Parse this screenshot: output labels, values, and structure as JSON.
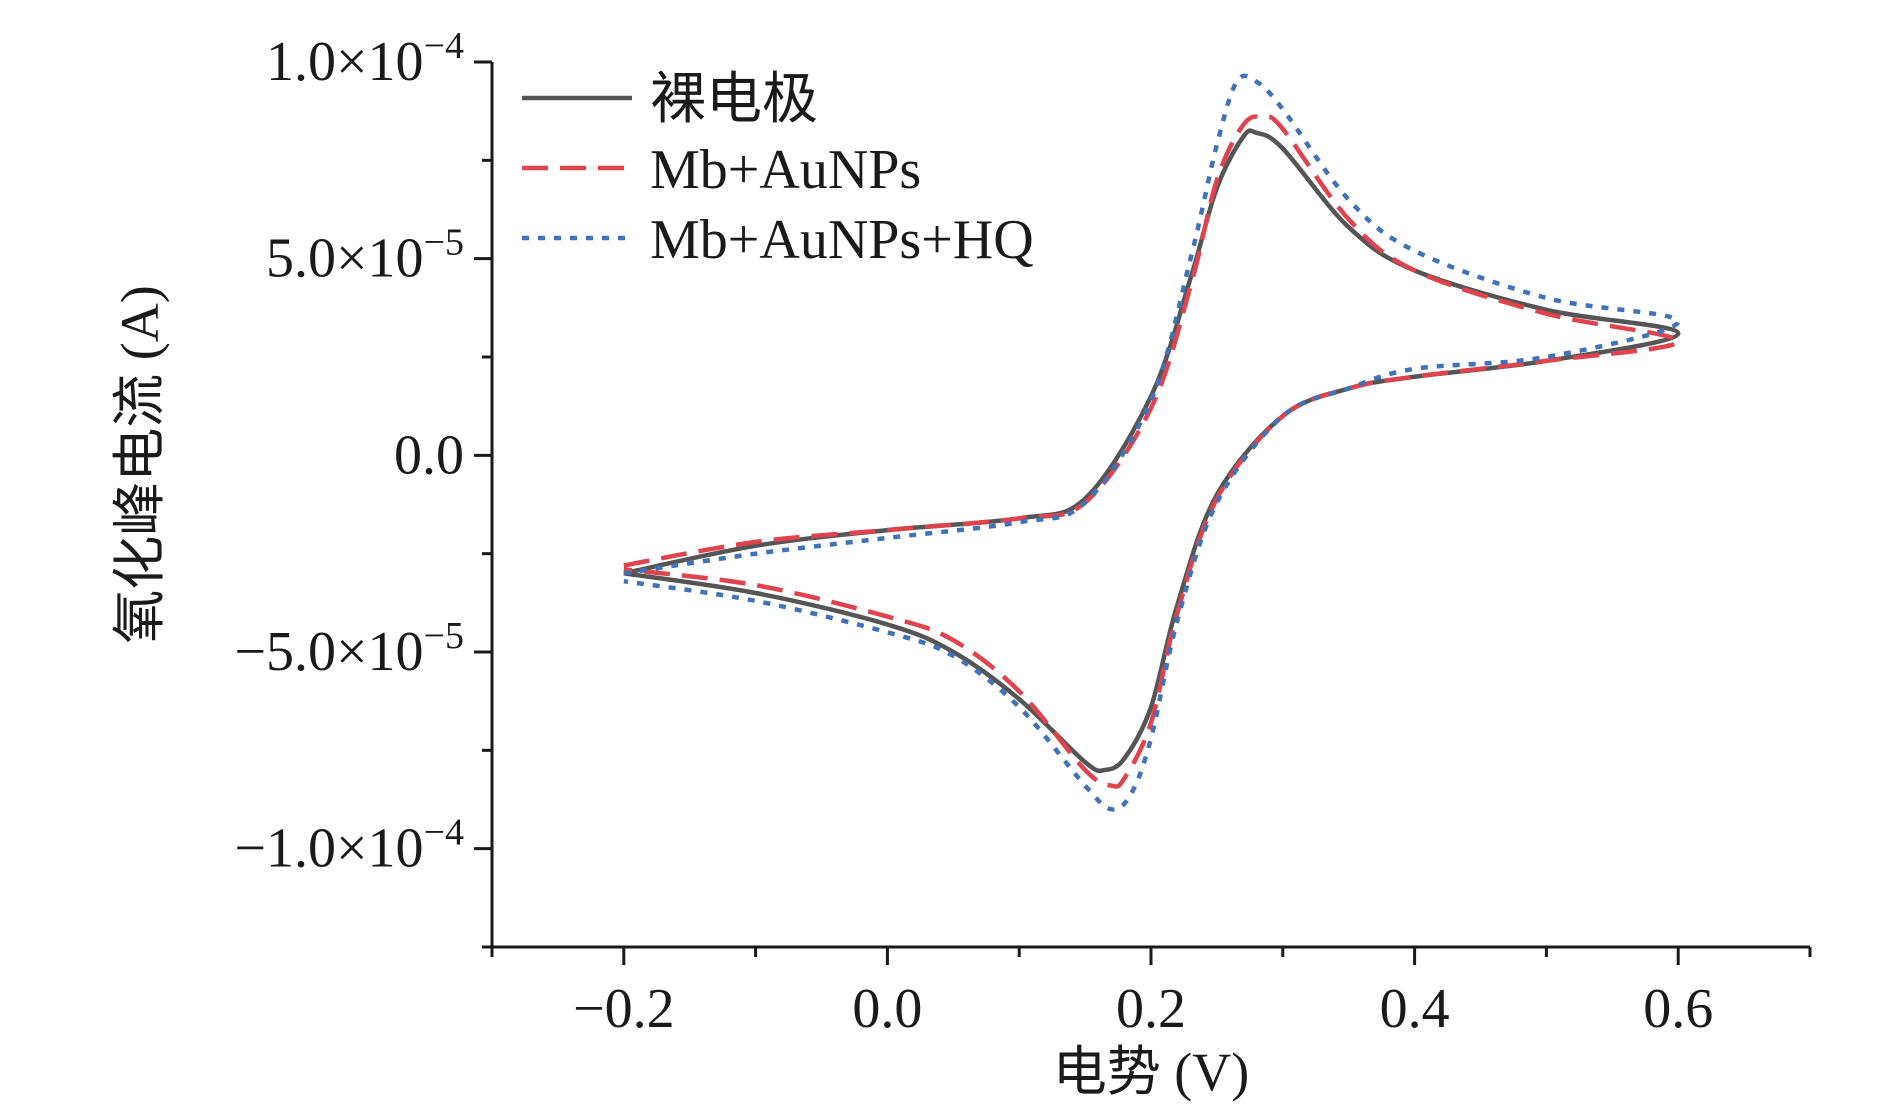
{
  "chart_data": {
    "type": "line",
    "title": "",
    "xlabel": "电势 (V)",
    "ylabel": "氧化峰电流 (A)",
    "xlim": [
      -0.3,
      0.7
    ],
    "ylim": [
      -0.000125,
      0.0001
    ],
    "x_ticks": [
      {
        "value": -0.2,
        "label": "−0.2"
      },
      {
        "value": 0.0,
        "label": "0.0"
      },
      {
        "value": 0.2,
        "label": "0.2"
      },
      {
        "value": 0.4,
        "label": "0.4"
      },
      {
        "value": 0.6,
        "label": "0.6"
      }
    ],
    "y_ticks": [
      {
        "value": 0.0001,
        "mantissa": "1.0×10",
        "exponent": "−4"
      },
      {
        "value": 5e-05,
        "mantissa": "5.0×10",
        "exponent": "−5"
      },
      {
        "value": 0.0,
        "mantissa": "0.0",
        "exponent": ""
      },
      {
        "value": -5e-05,
        "mantissa": "−5.0×10",
        "exponent": "−5"
      },
      {
        "value": -0.0001,
        "mantissa": "−1.0×10",
        "exponent": "−4"
      }
    ],
    "legend_position": "top-left",
    "series": [
      {
        "name": "裸电极",
        "color": "#555555",
        "style": "solid",
        "x": [
          -0.2,
          -0.1,
          0.0,
          0.1,
          0.15,
          0.2,
          0.23,
          0.25,
          0.27,
          0.28,
          0.3,
          0.35,
          0.4,
          0.5,
          0.6,
          0.5,
          0.4,
          0.35,
          0.3,
          0.25,
          0.22,
          0.2,
          0.18,
          0.165,
          0.15,
          0.1,
          0.05,
          0.0,
          -0.1,
          -0.2
        ],
        "y": [
          -3e-05,
          -2.3e-05,
          -1.9e-05,
          -1.6e-05,
          -1.1e-05,
          1.5e-05,
          4.5e-05,
          6.8e-05,
          8.1e-05,
          8.2e-05,
          7.8e-05,
          5.8e-05,
          4.7e-05,
          3.7e-05,
          3.1e-05,
          2.4e-05,
          2e-05,
          1.7e-05,
          1e-05,
          -1e-05,
          -3.8e-05,
          -6.4e-05,
          -7.7e-05,
          -8e-05,
          -7.8e-05,
          -6.2e-05,
          -5e-05,
          -4.3e-05,
          -3.5e-05,
          -3e-05
        ]
      },
      {
        "name": "Mb+AuNPs",
        "color": "#e0434d",
        "style": "dashed",
        "x": [
          -0.2,
          -0.1,
          0.0,
          0.1,
          0.15,
          0.2,
          0.23,
          0.25,
          0.27,
          0.285,
          0.3,
          0.35,
          0.4,
          0.5,
          0.6,
          0.5,
          0.4,
          0.35,
          0.3,
          0.25,
          0.22,
          0.2,
          0.18,
          0.17,
          0.15,
          0.1,
          0.05,
          0.0,
          -0.1,
          -0.2
        ],
        "y": [
          -2.8e-05,
          -2.2e-05,
          -1.9e-05,
          -1.6e-05,
          -1.2e-05,
          1.2e-05,
          4.3e-05,
          7e-05,
          8.4e-05,
          8.6e-05,
          8.3e-05,
          6e-05,
          4.7e-05,
          3.6e-05,
          2.9e-05,
          2.4e-05,
          2e-05,
          1.7e-05,
          1e-05,
          -1.1e-05,
          -4e-05,
          -6.8e-05,
          -8.2e-05,
          -8.4e-05,
          -8e-05,
          -6e-05,
          -4.7e-05,
          -4.1e-05,
          -3.3e-05,
          -2.9e-05
        ]
      },
      {
        "name": "Mb+AuNPs+HQ",
        "color": "#3f72b8",
        "style": "dotted",
        "x": [
          -0.2,
          -0.1,
          0.0,
          0.1,
          0.15,
          0.2,
          0.23,
          0.25,
          0.265,
          0.28,
          0.3,
          0.35,
          0.4,
          0.5,
          0.6,
          0.5,
          0.4,
          0.35,
          0.3,
          0.25,
          0.22,
          0.2,
          0.185,
          0.17,
          0.15,
          0.1,
          0.05,
          0.0,
          -0.1,
          -0.2
        ],
        "y": [
          -3e-05,
          -2.5e-05,
          -2.1e-05,
          -1.7e-05,
          -1.2e-05,
          1.4e-05,
          5e-05,
          7.9e-05,
          9.5e-05,
          9.5e-05,
          8.8e-05,
          6.5e-05,
          5.2e-05,
          4e-05,
          3.4e-05,
          2.5e-05,
          2.2e-05,
          1.7e-05,
          1e-05,
          -1.2e-05,
          -4.2e-05,
          -7.2e-05,
          -8.6e-05,
          -9e-05,
          -8.4e-05,
          -6.4e-05,
          -5.1e-05,
          -4.5e-05,
          -3.7e-05,
          -3.2e-05
        ]
      }
    ]
  }
}
